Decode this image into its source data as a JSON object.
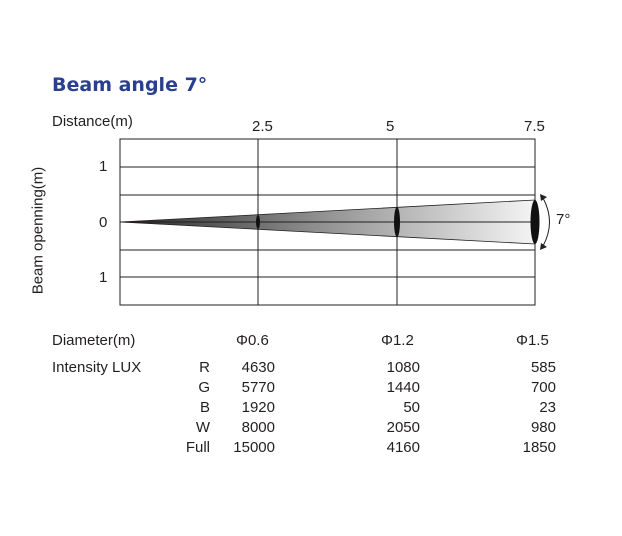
{
  "title": "Beam angle 7°",
  "distance_label": "Distance(m)",
  "distances": [
    "2.5",
    "5",
    "7.5"
  ],
  "beam_label": "Beam openning(m)",
  "beam_ticks": [
    "1",
    "0",
    "1"
  ],
  "angle_label": "7°",
  "diameter_label": "Diameter(m)",
  "diameters": [
    "Φ0.6",
    "Φ1.2",
    "Φ1.5"
  ],
  "intensity_label": "Intensity LUX",
  "intensity_rows": [
    {
      "channel": "R",
      "values": [
        "4630",
        "1080",
        "585"
      ]
    },
    {
      "channel": "G",
      "values": [
        "5770",
        "1440",
        "700"
      ]
    },
    {
      "channel": "B",
      "values": [
        "1920",
        "50",
        "23"
      ]
    },
    {
      "channel": "W",
      "values": [
        "8000",
        "2050",
        "980"
      ]
    },
    {
      "channel": "Full",
      "values": [
        "15000",
        "4160",
        "1850"
      ]
    }
  ],
  "colors": {
    "title": "#2a3f8f",
    "grid": "#231f20",
    "beam_dark": "#262626",
    "beam_light": "#f2f2f2"
  }
}
